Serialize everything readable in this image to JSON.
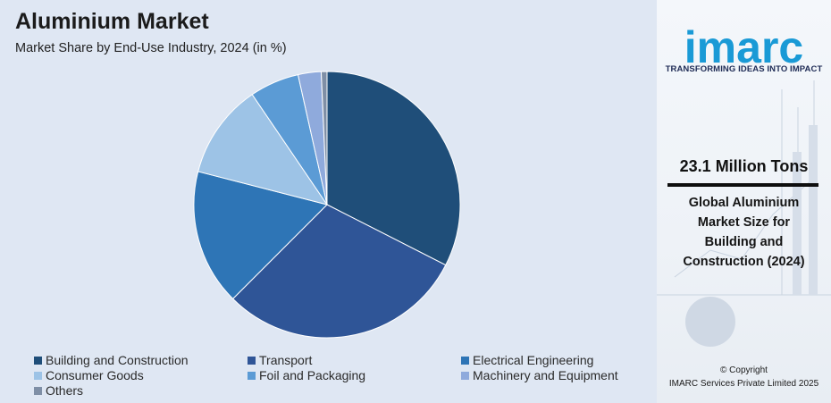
{
  "header": {
    "title": "Aluminium Market",
    "subtitle": "Market Share by End-Use Industry, 2024 (in %)"
  },
  "chart_data": {
    "type": "pie",
    "title": "Aluminium Market",
    "subtitle": "Market Share by End-Use Industry, 2024 (in %)",
    "start_angle": "12 o'clock",
    "direction": "clockwise",
    "legend_position": "bottom",
    "slices": [
      {
        "label": "Building and Construction",
        "value": 32.5,
        "color": "#1f4e79"
      },
      {
        "label": "Transport",
        "value": 30.0,
        "color": "#2f5597"
      },
      {
        "label": "Electrical Engineering",
        "value": 16.5,
        "color": "#2e75b6"
      },
      {
        "label": "Consumer Goods",
        "value": 11.5,
        "color": "#9dc3e6"
      },
      {
        "label": "Foil and Packaging",
        "value": 6.0,
        "color": "#5b9bd5"
      },
      {
        "label": "Machinery and Equipment",
        "value": 2.8,
        "color": "#8faadc"
      },
      {
        "label": "Others",
        "value": 0.7,
        "color": "#7f8fa6"
      }
    ]
  },
  "sidebar": {
    "logo_text": "imarc",
    "tagline": "TRANSFORMING IDEAS INTO IMPACT",
    "stat_value": "23.1 Million Tons",
    "stat_caption": "Global Aluminium Market Size for Building and Construction (2024)",
    "copyright_line1": "© Copyright",
    "copyright_line2": "IMARC Services Private Limited 2025",
    "brand_color": "#1a9ad6"
  }
}
